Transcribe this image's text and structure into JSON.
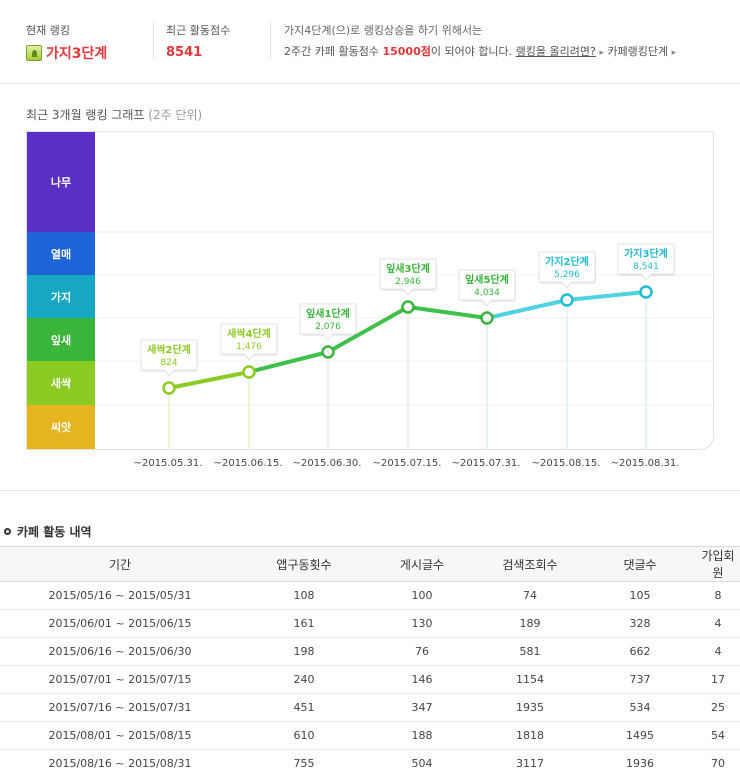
{
  "summary": {
    "rank_label": "현재 랭킹",
    "rank_value": "가지3단계",
    "score_label": "최근 활동점수",
    "score_value": "8541",
    "msg_line1": "가지4단계(으)로 랭킹상승을 하기 위해서는",
    "msg_line2_pre": "2주간 카페 활동점수",
    "msg_line2_points": "15000점",
    "msg_line2_post": "이 되어야 합니다.",
    "link_howto": "랭킹을 올리려면?",
    "link_levels": "카페랭킹단계"
  },
  "graph": {
    "title": "최근 3개월 랭킹 그래프",
    "subtitle": "(2주 단위)",
    "stages": [
      {
        "name": "나무",
        "color": "#5a2fc4"
      },
      {
        "name": "열매",
        "color": "#1d64d6"
      },
      {
        "name": "가지",
        "color": "#15a7c4"
      },
      {
        "name": "잎새",
        "color": "#3ab53a"
      },
      {
        "name": "새싹",
        "color": "#8ccb23"
      },
      {
        "name": "씨앗",
        "color": "#e6b321"
      }
    ]
  },
  "chart_data": {
    "type": "line",
    "x": [
      "~2015.05.31.",
      "~2015.06.15.",
      "~2015.06.30.",
      "~2015.07.15.",
      "~2015.07.31.",
      "~2015.08.15.",
      "~2015.08.31."
    ],
    "points": [
      {
        "stage": "새싹2단계",
        "score": "824",
        "color": "#8ccb23"
      },
      {
        "stage": "새싹4단계",
        "score": "1,476",
        "color": "#8ccb23"
      },
      {
        "stage": "잎새1단계",
        "score": "2,076",
        "color": "#3ab53a"
      },
      {
        "stage": "잎새3단계",
        "score": "2,946",
        "color": "#3ab53a"
      },
      {
        "stage": "잎새5단계",
        "score": "4,034",
        "color": "#3ab53a"
      },
      {
        "stage": "가지2단계",
        "score": "5,296",
        "color": "#22bcd3"
      },
      {
        "stage": "가지3단계",
        "score": "8,541",
        "color": "#22bcd3"
      }
    ]
  },
  "activity": {
    "title": "카페 활동 내역",
    "headers": [
      "기간",
      "앱구동횟수",
      "게시글수",
      "검색조회수",
      "댓글수",
      "가입회원"
    ],
    "rows": [
      [
        "2015/05/16 ~ 2015/05/31",
        "108",
        "100",
        "74",
        "105",
        "8"
      ],
      [
        "2015/06/01 ~ 2015/06/15",
        "161",
        "130",
        "189",
        "328",
        "4"
      ],
      [
        "2015/06/16 ~ 2015/06/30",
        "198",
        "76",
        "581",
        "662",
        "4"
      ],
      [
        "2015/07/01 ~ 2015/07/15",
        "240",
        "146",
        "1154",
        "737",
        "17"
      ],
      [
        "2015/07/16 ~ 2015/07/31",
        "451",
        "347",
        "1935",
        "534",
        "25"
      ],
      [
        "2015/08/01 ~ 2015/08/15",
        "610",
        "188",
        "1818",
        "1495",
        "54"
      ],
      [
        "2015/08/16 ~ 2015/08/31",
        "755",
        "504",
        "3117",
        "1936",
        "70"
      ]
    ]
  }
}
